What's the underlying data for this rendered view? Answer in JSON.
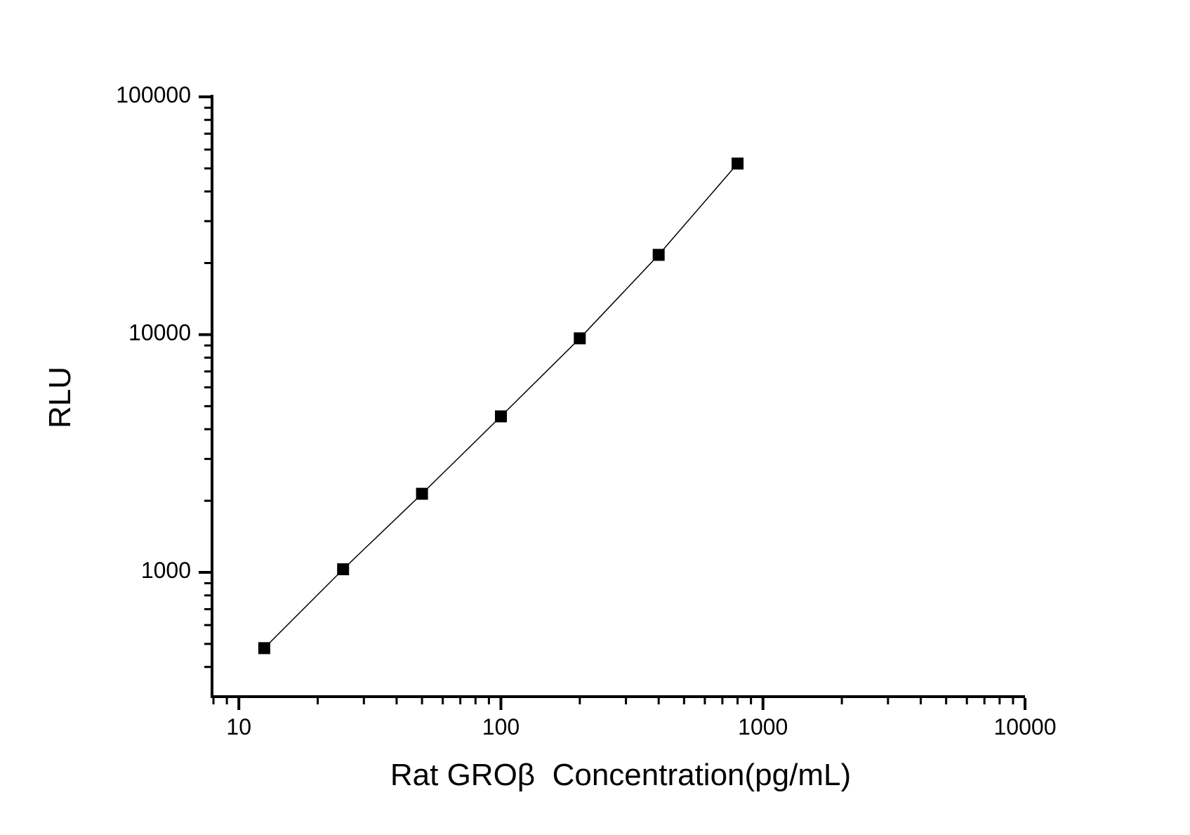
{
  "figure": {
    "background_color": "#ffffff",
    "foreground_color": "#000000"
  },
  "chart_data": {
    "type": "scatter",
    "title": "",
    "xlabel": "Rat GROβ  Concentration(pg/mL)",
    "ylabel": "RLU",
    "x_scale": "log10",
    "y_scale": "log10",
    "xlim": [
      7.9,
      10000
    ],
    "ylim": [
      300,
      102000
    ],
    "x_major_ticks": [
      10,
      100,
      1000,
      10000
    ],
    "y_major_ticks": [
      1000,
      10000,
      100000
    ],
    "x_tick_labels": [
      "10",
      "100",
      "1000",
      "10000"
    ],
    "y_tick_labels": [
      "1000",
      "10000",
      "100000"
    ],
    "minor_ticks": "log-decades-2-to-9",
    "grid": false,
    "legend": null,
    "series": [
      {
        "name": "standard-curve",
        "marker": "filled-square",
        "marker_color": "#000000",
        "line_style": "solid-thin",
        "line_color": "#000000",
        "x": [
          12.5,
          25,
          50,
          100,
          200,
          400,
          800
        ],
        "y": [
          480,
          1030,
          2140,
          4530,
          9640,
          21650,
          52400
        ]
      }
    ]
  }
}
